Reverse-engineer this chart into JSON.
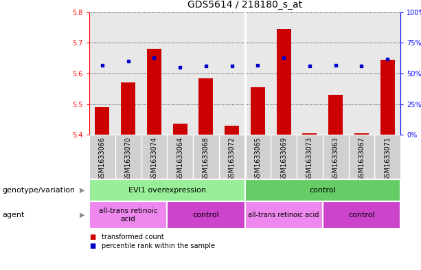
{
  "title": "GDS5614 / 218180_s_at",
  "samples": [
    "GSM1633066",
    "GSM1633070",
    "GSM1633074",
    "GSM1633064",
    "GSM1633068",
    "GSM1633072",
    "GSM1633065",
    "GSM1633069",
    "GSM1633073",
    "GSM1633063",
    "GSM1633067",
    "GSM1633071"
  ],
  "transformed_count": [
    5.49,
    5.57,
    5.68,
    5.435,
    5.585,
    5.43,
    5.555,
    5.745,
    5.405,
    5.53,
    5.405,
    5.645
  ],
  "percentile_rank": [
    57,
    60,
    63,
    55,
    56,
    56,
    57,
    63,
    56,
    57,
    56,
    62
  ],
  "y_min": 5.4,
  "y_max": 5.8,
  "y_ticks": [
    5.4,
    5.5,
    5.6,
    5.7,
    5.8
  ],
  "y2_ticks": [
    0,
    25,
    50,
    75,
    100
  ],
  "bar_color": "#cc0000",
  "dot_color": "#0000cc",
  "bar_bottom": 5.4,
  "plot_bg_color": "#e8e8e8",
  "sample_bg_color": "#d0d0d0",
  "genotype_groups": [
    {
      "label": "EVI1 overexpression",
      "start": 0,
      "end": 6,
      "color": "#99ee99"
    },
    {
      "label": "control",
      "start": 6,
      "end": 12,
      "color": "#66cc66"
    }
  ],
  "agent_groups": [
    {
      "label": "all-trans retinoic\nacid",
      "start": 0,
      "end": 3,
      "color": "#ee88ee"
    },
    {
      "label": "control",
      "start": 3,
      "end": 6,
      "color": "#cc44cc"
    },
    {
      "label": "all-trans retinoic acid",
      "start": 6,
      "end": 9,
      "color": "#ee88ee"
    },
    {
      "label": "control",
      "start": 9,
      "end": 12,
      "color": "#cc44cc"
    }
  ],
  "legend_red_label": "transformed count",
  "legend_blue_label": "percentile rank within the sample",
  "genotype_label": "genotype/variation",
  "agent_label": "agent",
  "title_fontsize": 10,
  "tick_fontsize": 7,
  "annot_fontsize": 8
}
